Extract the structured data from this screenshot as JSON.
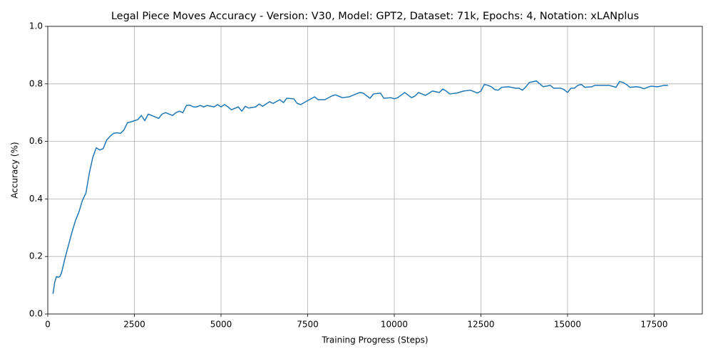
{
  "chart_data": {
    "type": "line",
    "title": "Legal Piece Moves Accuracy - Version: V30, Model: GPT2, Dataset: 71k, Epochs: 4, Notation: xLANplus",
    "x_label": "Training Progress (Steps)",
    "y_label": "Accuracy (%)",
    "x": [
      150,
      200,
      250,
      300,
      350,
      400,
      500,
      600,
      700,
      800,
      900,
      1000,
      1100,
      1200,
      1300,
      1400,
      1500,
      1600,
      1700,
      1800,
      1900,
      2000,
      2100,
      2200,
      2300,
      2400,
      2500,
      2600,
      2700,
      2800,
      2900,
      3000,
      3200,
      3300,
      3400,
      3500,
      3600,
      3700,
      3800,
      3900,
      4000,
      4100,
      4200,
      4300,
      4400,
      4500,
      4600,
      4800,
      4900,
      5000,
      5100,
      5200,
      5300,
      5500,
      5600,
      5700,
      5800,
      6000,
      6100,
      6200,
      6400,
      6500,
      6700,
      6800,
      6900,
      7100,
      7200,
      7300,
      7500,
      7700,
      7800,
      8000,
      8200,
      8300,
      8500,
      8700,
      8900,
      9000,
      9100,
      9300,
      9400,
      9600,
      9700,
      9900,
      10000,
      10100,
      10300,
      10500,
      10600,
      10700,
      10900,
      11100,
      11300,
      11400,
      11500,
      11600,
      11800,
      12000,
      12200,
      12400,
      12500,
      12600,
      12700,
      12800,
      12900,
      13000,
      13100,
      13300,
      13500,
      13600,
      13700,
      13800,
      13900,
      14100,
      14200,
      14300,
      14500,
      14600,
      14800,
      14900,
      15000,
      15100,
      15200,
      15300,
      15400,
      15500,
      15700,
      15800,
      16000,
      16200,
      16400,
      16500,
      16600,
      16700,
      16800,
      17000,
      17100,
      17200,
      17400,
      17600,
      17800,
      17900
    ],
    "series": [
      {
        "name": "Accuracy",
        "color": "#1f77b4",
        "values": [
          0.07,
          0.11,
          0.13,
          0.128,
          0.13,
          0.145,
          0.195,
          0.24,
          0.285,
          0.325,
          0.355,
          0.395,
          0.42,
          0.49,
          0.545,
          0.578,
          0.57,
          0.575,
          0.605,
          0.618,
          0.628,
          0.63,
          0.628,
          0.64,
          0.665,
          0.668,
          0.672,
          0.676,
          0.69,
          0.672,
          0.695,
          0.69,
          0.68,
          0.695,
          0.7,
          0.695,
          0.69,
          0.7,
          0.705,
          0.7,
          0.725,
          0.726,
          0.72,
          0.72,
          0.725,
          0.72,
          0.725,
          0.72,
          0.728,
          0.72,
          0.728,
          0.72,
          0.71,
          0.72,
          0.705,
          0.722,
          0.716,
          0.72,
          0.73,
          0.722,
          0.738,
          0.732,
          0.745,
          0.735,
          0.75,
          0.748,
          0.732,
          0.728,
          0.742,
          0.755,
          0.745,
          0.745,
          0.758,
          0.762,
          0.752,
          0.755,
          0.765,
          0.77,
          0.768,
          0.75,
          0.765,
          0.768,
          0.75,
          0.752,
          0.748,
          0.752,
          0.77,
          0.752,
          0.758,
          0.77,
          0.76,
          0.775,
          0.77,
          0.782,
          0.775,
          0.765,
          0.768,
          0.775,
          0.778,
          0.768,
          0.775,
          0.798,
          0.795,
          0.79,
          0.78,
          0.778,
          0.788,
          0.79,
          0.785,
          0.785,
          0.778,
          0.79,
          0.805,
          0.81,
          0.8,
          0.79,
          0.795,
          0.785,
          0.785,
          0.78,
          0.77,
          0.785,
          0.785,
          0.795,
          0.798,
          0.788,
          0.79,
          0.795,
          0.795,
          0.795,
          0.788,
          0.808,
          0.805,
          0.798,
          0.788,
          0.79,
          0.788,
          0.783,
          0.792,
          0.79,
          0.795,
          0.795
        ]
      }
    ],
    "xlim": [
      0,
      18890
    ],
    "xticks": [
      0,
      2500,
      5000,
      7500,
      10000,
      12500,
      15000,
      17500
    ],
    "ylim": [
      0,
      1
    ],
    "yticks": [
      {
        "value": 0,
        "label": "0.0"
      },
      0.2,
      0.4,
      0.6,
      0.8,
      {
        "value": 1,
        "label": "1.0"
      }
    ],
    "grid": true
  }
}
